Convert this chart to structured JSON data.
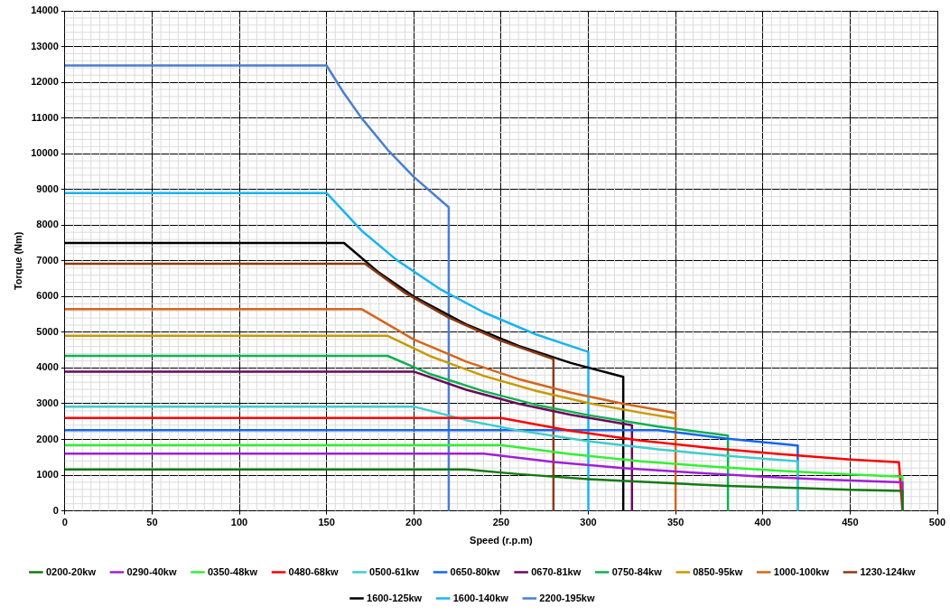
{
  "chart_data": {
    "type": "line",
    "xlabel": "Speed (r.p.m)",
    "ylabel": "Torque (Nm)",
    "xlim": [
      0,
      500
    ],
    "ylim": [
      0,
      14000
    ],
    "xticks": [
      0,
      50,
      100,
      150,
      200,
      250,
      300,
      350,
      400,
      450,
      500
    ],
    "yticks": [
      0,
      1000,
      2000,
      3000,
      4000,
      5000,
      6000,
      7000,
      8000,
      9000,
      10000,
      11000,
      12000,
      13000,
      14000
    ],
    "grid": true,
    "legend": "bottom",
    "marker": "none",
    "line_style": "solid",
    "series": [
      {
        "name": "0200-20kw",
        "color": "#137a13",
        "x": [
          0,
          230,
          260,
          300,
          340,
          380,
          420,
          450,
          480,
          480
        ],
        "values": [
          1160,
          1160,
          1030,
          890,
          790,
          700,
          640,
          590,
          560,
          0
        ]
      },
      {
        "name": "0290-40kw",
        "color": "#a01fd8",
        "x": [
          0,
          240,
          280,
          320,
          360,
          400,
          440,
          480,
          480
        ],
        "values": [
          1600,
          1600,
          1370,
          1200,
          1070,
          960,
          870,
          800,
          0
        ]
      },
      {
        "name": "0350-48kw",
        "color": "#33f033",
        "x": [
          0,
          250,
          290,
          330,
          370,
          410,
          450,
          480,
          480
        ],
        "values": [
          1840,
          1840,
          1590,
          1390,
          1240,
          1120,
          1020,
          960,
          0
        ]
      },
      {
        "name": "0480-68kw",
        "color": "#ff0000",
        "x": [
          0,
          250,
          290,
          330,
          370,
          410,
          450,
          478,
          480
        ],
        "values": [
          2600,
          2600,
          2240,
          1970,
          1760,
          1590,
          1440,
          1360,
          0
        ]
      },
      {
        "name": "0500-61kw",
        "color": "#40cccc",
        "x": [
          0,
          200,
          230,
          260,
          300,
          340,
          380,
          420,
          420
        ],
        "values": [
          2920,
          2920,
          2540,
          2250,
          1950,
          1720,
          1540,
          1390,
          0
        ]
      },
      {
        "name": "0650-80kw",
        "color": "#1565f0",
        "x": [
          0,
          340,
          380,
          420,
          420
        ],
        "values": [
          2260,
          2260,
          2020,
          1830,
          0
        ]
      },
      {
        "name": "0670-81kw",
        "color": "#6a0a5a",
        "x": [
          0,
          200,
          230,
          260,
          290,
          325,
          325
        ],
        "values": [
          3900,
          3900,
          3390,
          3000,
          2690,
          2400,
          0
        ]
      },
      {
        "name": "0750-84kw",
        "color": "#10b050",
        "x": [
          0,
          185,
          210,
          240,
          270,
          300,
          340,
          380,
          380
        ],
        "values": [
          4340,
          4340,
          3820,
          3350,
          2970,
          2680,
          2360,
          2110,
          0
        ]
      },
      {
        "name": "0850-95kw",
        "color": "#c89a00",
        "x": [
          0,
          185,
          210,
          240,
          270,
          300,
          330,
          350
        ],
        "values": [
          4900,
          4900,
          4320,
          3780,
          3360,
          3020,
          2750,
          2590
        ]
      },
      {
        "name": "1000-100kw",
        "color": "#d4661a",
        "x": [
          0,
          170,
          200,
          230,
          260,
          290,
          320,
          350,
          350
        ],
        "values": [
          5650,
          5650,
          4800,
          4180,
          3690,
          3310,
          3000,
          2740,
          0
        ]
      },
      {
        "name": "1230-124kw",
        "color": "#8a3a12",
        "x": [
          0,
          172,
          195,
          220,
          250,
          280,
          280
        ],
        "values": [
          6920,
          6920,
          6100,
          5410,
          4760,
          4250,
          0
        ]
      },
      {
        "name": "1600-125kw",
        "color": "#000000",
        "x": [
          0,
          160,
          180,
          200,
          230,
          260,
          290,
          320,
          320
        ],
        "values": [
          7500,
          7500,
          6670,
          6000,
          5220,
          4620,
          4140,
          3750,
          0
        ]
      },
      {
        "name": "1600-140kw",
        "color": "#18b4f0",
        "x": [
          0,
          150,
          170,
          190,
          215,
          240,
          270,
          300,
          300
        ],
        "values": [
          8900,
          8900,
          7850,
          7030,
          6210,
          5560,
          4940,
          4450,
          0
        ]
      },
      {
        "name": "2200-195kw",
        "color": "#4a7ed0",
        "x": [
          0,
          150,
          160,
          170,
          185,
          200,
          220,
          220
        ],
        "values": [
          12470,
          12470,
          11690,
          11000,
          10110,
          9350,
          8500,
          0
        ]
      }
    ]
  }
}
